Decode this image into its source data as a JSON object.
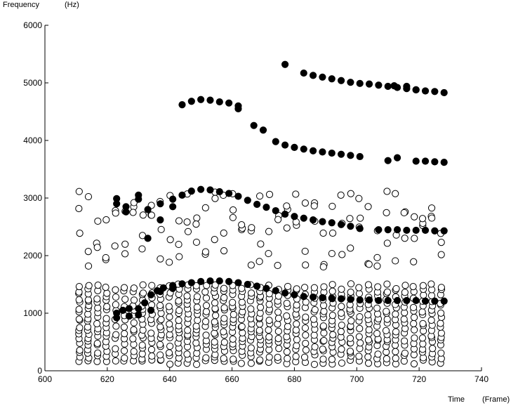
{
  "chart_data": {
    "type": "scatter",
    "title": "",
    "xlabel": "Time",
    "xunit": "(Frame)",
    "ylabel": "Frequency",
    "yunit": "(Hz)",
    "xlim": [
      600,
      740
    ],
    "ylim": [
      0,
      6000
    ],
    "xticks": [
      600,
      620,
      640,
      660,
      680,
      700,
      720,
      740
    ],
    "yticks": [
      0,
      1000,
      2000,
      3000,
      4000,
      5000,
      6000
    ],
    "grid": false,
    "legend": "none",
    "series": [
      {
        "marker": "filled-circle",
        "color": "#000000",
        "points": [
          [
            623,
            1000
          ],
          [
            625,
            1050
          ],
          [
            627,
            1080
          ],
          [
            630,
            1080
          ],
          [
            632,
            1180
          ],
          [
            634,
            1320
          ],
          [
            636,
            1390
          ],
          [
            638,
            1440
          ],
          [
            641,
            1480
          ],
          [
            644,
            1510
          ],
          [
            647,
            1530
          ],
          [
            650,
            1550
          ],
          [
            653,
            1560
          ],
          [
            656,
            1560
          ],
          [
            659,
            1550
          ],
          [
            662,
            1530
          ],
          [
            665,
            1500
          ],
          [
            668,
            1470
          ],
          [
            671,
            1430
          ],
          [
            674,
            1390
          ],
          [
            677,
            1350
          ],
          [
            680,
            1320
          ],
          [
            683,
            1290
          ],
          [
            686,
            1280
          ],
          [
            689,
            1270
          ],
          [
            692,
            1260
          ],
          [
            695,
            1250
          ],
          [
            698,
            1240
          ],
          [
            701,
            1230
          ],
          [
            704,
            1230
          ],
          [
            707,
            1220
          ],
          [
            710,
            1220
          ],
          [
            713,
            1220
          ],
          [
            716,
            1220
          ],
          [
            719,
            1220
          ],
          [
            722,
            1210
          ],
          [
            725,
            1210
          ],
          [
            728,
            1210
          ],
          [
            623,
            920
          ],
          [
            627,
            950
          ],
          [
            630,
            970
          ],
          [
            634,
            1050
          ],
          [
            637,
            1380
          ],
          [
            641,
            1430
          ],
          [
            623,
            2900
          ],
          [
            626,
            2850
          ],
          [
            630,
            2980
          ],
          [
            633,
            2800
          ],
          [
            637,
            2900
          ],
          [
            641,
            2980
          ],
          [
            644,
            3050
          ],
          [
            647,
            3120
          ],
          [
            650,
            3150
          ],
          [
            653,
            3140
          ],
          [
            656,
            3110
          ],
          [
            659,
            3080
          ],
          [
            662,
            3030
          ],
          [
            665,
            2960
          ],
          [
            668,
            2890
          ],
          [
            671,
            2840
          ],
          [
            674,
            2780
          ],
          [
            677,
            2720
          ],
          [
            680,
            2680
          ],
          [
            683,
            2650
          ],
          [
            686,
            2620
          ],
          [
            689,
            2590
          ],
          [
            692,
            2570
          ],
          [
            695,
            2540
          ],
          [
            698,
            2510
          ],
          [
            701,
            2470
          ],
          [
            707,
            2450
          ],
          [
            710,
            2450
          ],
          [
            713,
            2450
          ],
          [
            716,
            2440
          ],
          [
            719,
            2440
          ],
          [
            722,
            2440
          ],
          [
            725,
            2430
          ],
          [
            728,
            2430
          ],
          [
            623,
            2990
          ],
          [
            626,
            2760
          ],
          [
            630,
            3050
          ],
          [
            633,
            2300
          ],
          [
            637,
            2620
          ],
          [
            641,
            2850
          ],
          [
            644,
            4620
          ],
          [
            647,
            4680
          ],
          [
            650,
            4710
          ],
          [
            653,
            4700
          ],
          [
            656,
            4670
          ],
          [
            659,
            4650
          ],
          [
            662,
            4600
          ],
          [
            662,
            4550
          ],
          [
            667,
            4260
          ],
          [
            670,
            4180
          ],
          [
            674,
            3980
          ],
          [
            677,
            3920
          ],
          [
            680,
            3880
          ],
          [
            683,
            3850
          ],
          [
            686,
            3820
          ],
          [
            689,
            3800
          ],
          [
            692,
            3780
          ],
          [
            695,
            3760
          ],
          [
            698,
            3740
          ],
          [
            701,
            3720
          ],
          [
            710,
            3650
          ],
          [
            713,
            3700
          ],
          [
            719,
            3640
          ],
          [
            722,
            3640
          ],
          [
            725,
            3630
          ],
          [
            728,
            3620
          ],
          [
            677,
            5320
          ],
          [
            683,
            5170
          ],
          [
            686,
            5130
          ],
          [
            689,
            5100
          ],
          [
            692,
            5070
          ],
          [
            695,
            5040
          ],
          [
            698,
            5010
          ],
          [
            701,
            4990
          ],
          [
            704,
            4980
          ],
          [
            707,
            4960
          ],
          [
            710,
            4940
          ],
          [
            713,
            4920
          ],
          [
            716,
            4900
          ],
          [
            719,
            4880
          ],
          [
            722,
            4860
          ],
          [
            725,
            4850
          ],
          [
            728,
            4830
          ],
          [
            712,
            4950
          ],
          [
            716,
            4940
          ],
          [
            719,
            4880
          ]
        ]
      },
      {
        "marker": "open-circle",
        "color": "#000000",
        "count_per_frame": [
          21,
          23,
          19,
          19,
          14,
          17,
          17,
          20,
          16,
          21,
          17,
          20,
          20,
          20,
          17,
          22,
          19,
          20,
          20,
          19,
          22,
          18,
          16,
          18,
          18,
          15,
          18,
          20,
          20,
          16,
          22,
          15,
          20,
          19,
          20,
          18,
          18,
          16,
          19,
          20,
          19
        ]
      }
    ]
  }
}
